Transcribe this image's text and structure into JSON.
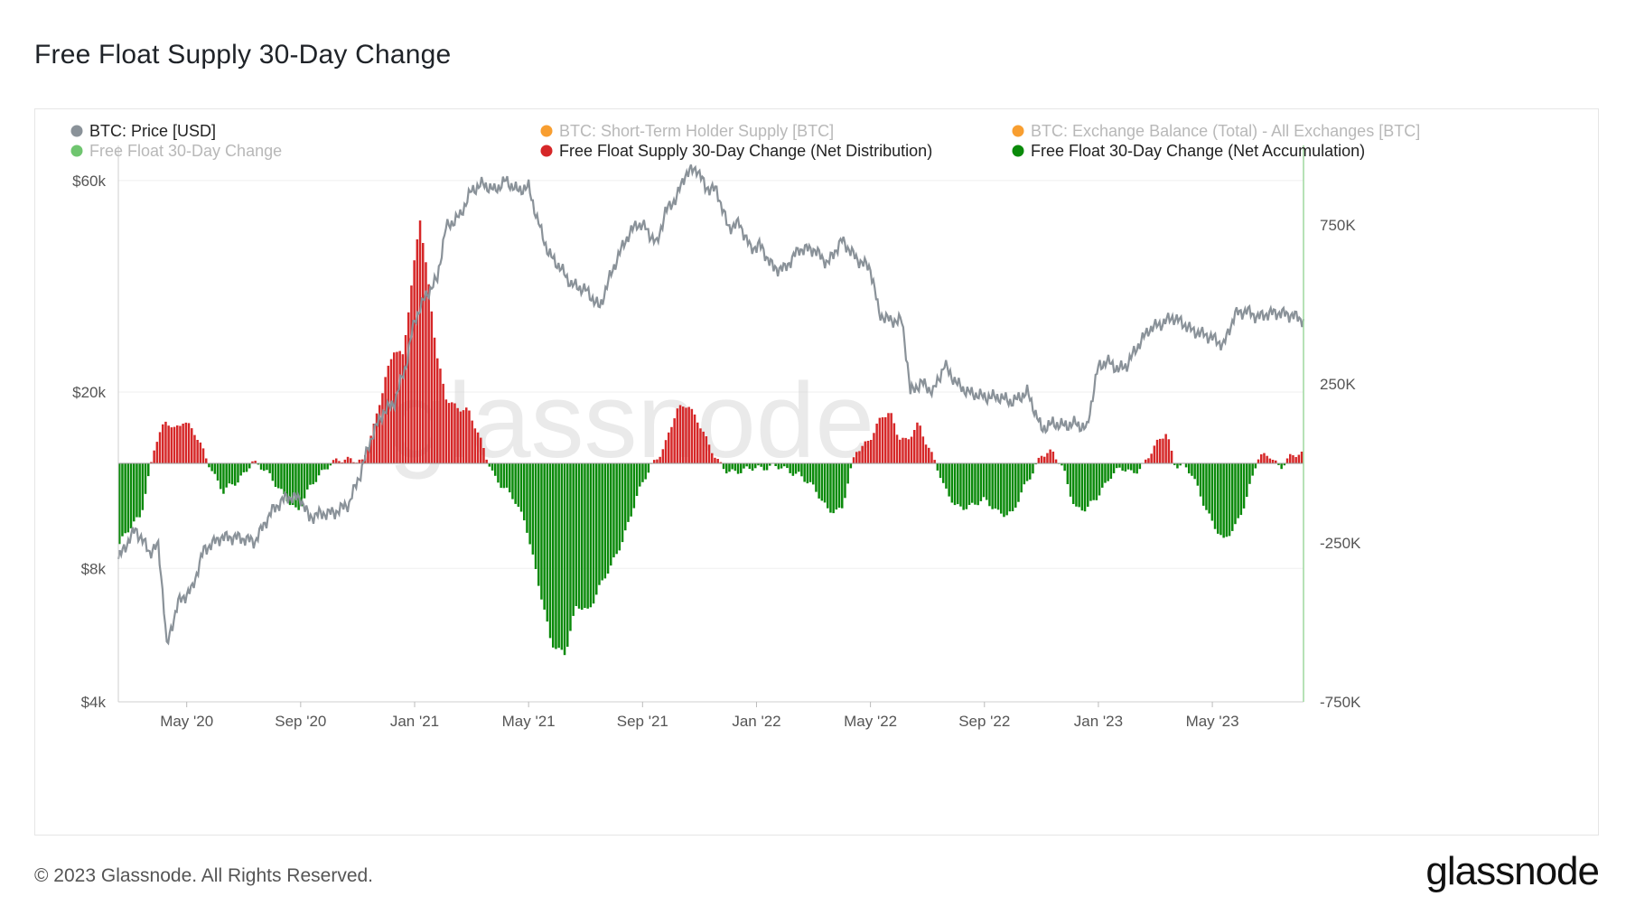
{
  "title": "Free Float Supply 30-Day Change",
  "footer": {
    "copyright": "© 2023 Glassnode. All Rights Reserved.",
    "logo": "glassnode"
  },
  "watermark": "glassnode",
  "chart_data": {
    "type": "bar",
    "title": "Free Float Supply 30-Day Change",
    "legend": [
      {
        "name": "BTC: Price [USD]",
        "color": "#8a9299",
        "active": true
      },
      {
        "name": "BTC: Short-Term Holder Supply [BTC]",
        "color": "#f7931a",
        "active": false
      },
      {
        "name": "BTC: Exchange Balance (Total) - All Exchanges [BTC]",
        "color": "#f7931a",
        "active": false
      },
      {
        "name": "Free Float 30-Day Change",
        "color": "#5fbf5f",
        "active": false
      },
      {
        "name": "Free Float Supply 30-Day Change (Net Distribution)",
        "color": "#d62728",
        "active": true
      },
      {
        "name": "Free Float 30-Day Change (Net Accumulation)",
        "color": "#0a8a0a",
        "active": true
      }
    ],
    "legend_position": "top",
    "x_ticks": [
      "May '20",
      "Sep '20",
      "Jan '21",
      "May '21",
      "Sep '21",
      "Jan '22",
      "May '22",
      "Sep '22",
      "Jan '23",
      "May '23"
    ],
    "x_tick_months": [
      4,
      8,
      12,
      16,
      20,
      24,
      28,
      32,
      36,
      40
    ],
    "x_range_months": [
      1.6,
      43.2
    ],
    "y_left": {
      "scale": "log",
      "ticks": [
        "$4k",
        "$8k",
        "$20k",
        "$60k"
      ],
      "tick_values": [
        4000,
        8000,
        20000,
        60000
      ],
      "range": [
        4000,
        72000
      ]
    },
    "y_right": {
      "scale": "linear",
      "ticks": [
        "750K",
        "250K",
        "-250K",
        "-750K"
      ],
      "tick_values": [
        750000,
        250000,
        -250000,
        -750000
      ],
      "range": [
        -750000,
        1000000
      ]
    },
    "price_series": {
      "name": "BTC: Price [USD]",
      "x_month": [
        1.6,
        2.2,
        2.7,
        3.0,
        3.3,
        3.7,
        4.2,
        4.6,
        5.2,
        5.8,
        6.4,
        7.0,
        7.5,
        8.0,
        8.3,
        8.6,
        9.2,
        9.7,
        10.1,
        10.5,
        10.9,
        11.3,
        11.7,
        12.0,
        12.4,
        12.8,
        13.1,
        13.6,
        14.0,
        14.4,
        14.8,
        15.2,
        15.6,
        16.0,
        16.3,
        16.7,
        17.0,
        17.5,
        18.0,
        18.5,
        18.9,
        19.4,
        19.8,
        20.1,
        20.5,
        20.8,
        21.2,
        21.5,
        21.9,
        22.2,
        22.6,
        23.0,
        23.4,
        23.8,
        24.1,
        24.6,
        25.0,
        25.5,
        26.0,
        26.5,
        27.0,
        27.5,
        28.0,
        28.3,
        28.7,
        29.1,
        29.4,
        29.8,
        30.2,
        30.6,
        31.0,
        31.4,
        32.0,
        32.5,
        33.0,
        33.5,
        34.0,
        34.4,
        34.8,
        35.2,
        35.6,
        36.0,
        36.3,
        36.7,
        37.0,
        37.4,
        37.8,
        38.2,
        38.6,
        39.0,
        39.3,
        39.7,
        40.0,
        40.4,
        40.8,
        41.2,
        41.6,
        41.9,
        42.2,
        42.6,
        43.0,
        43.2
      ],
      "y_usd": [
        8400,
        9800,
        8700,
        9000,
        5300,
        6700,
        7200,
        8800,
        9400,
        9400,
        9200,
        10800,
        11600,
        11500,
        10400,
        10600,
        10700,
        11200,
        13100,
        15900,
        18000,
        19000,
        23000,
        29000,
        33000,
        36000,
        47000,
        50000,
        57000,
        59000,
        57000,
        60000,
        57000,
        58000,
        49000,
        41000,
        39000,
        35000,
        34000,
        31000,
        37000,
        44000,
        48000,
        47000,
        43000,
        51000,
        55000,
        62000,
        64000,
        58000,
        57000,
        47000,
        48000,
        42000,
        43000,
        38000,
        38000,
        42000,
        42000,
        39000,
        44000,
        40000,
        38000,
        30000,
        29000,
        29000,
        20000,
        21000,
        20000,
        23000,
        21000,
        20000,
        19500,
        19500,
        19000,
        20000,
        16500,
        17000,
        16800,
        17000,
        16500,
        22800,
        23500,
        22500,
        23000,
        25500,
        27800,
        28500,
        29500,
        28500,
        27500,
        27000,
        26500,
        25500,
        30000,
        30500,
        29500,
        30000,
        30200,
        30000,
        29500,
        29000
      ]
    },
    "flow_series": {
      "x_month": [
        1.6,
        2.4,
        2.9,
        3.3,
        3.6,
        3.9,
        4.3,
        4.8,
        5.3,
        5.8,
        6.3,
        6.8,
        7.4,
        7.9,
        8.4,
        8.7,
        9.0,
        9.4,
        9.8,
        10.2,
        10.6,
        11.0,
        11.3,
        11.6,
        11.9,
        12.2,
        12.5,
        12.8,
        13.1,
        13.5,
        13.9,
        14.4,
        14.8,
        15.1,
        15.5,
        15.9,
        16.3,
        16.8,
        17.3,
        17.7,
        18.1,
        18.5,
        18.9,
        19.3,
        19.8,
        20.3,
        20.8,
        21.2,
        21.6,
        22.0,
        22.3,
        22.6,
        23.0,
        23.5,
        24.0,
        24.5,
        25.0,
        25.5,
        26.0,
        26.5,
        27.0,
        27.5,
        28.0,
        28.4,
        28.7,
        29.0,
        29.3,
        29.7,
        30.0,
        30.3,
        30.6,
        31.0,
        31.5,
        32.0,
        32.5,
        33.0,
        33.5,
        34.0,
        34.4,
        34.8,
        35.2,
        35.6,
        36.0,
        36.4,
        36.8,
        37.2,
        37.6,
        38.0,
        38.4,
        38.7,
        39.0,
        39.3,
        39.6,
        40.0,
        40.4,
        40.8,
        41.2,
        41.6,
        42.0,
        42.4,
        42.8,
        43.2
      ],
      "y_btc": [
        -260000,
        -160000,
        60000,
        130000,
        110000,
        140000,
        90000,
        0,
        -90000,
        -60000,
        10000,
        -30000,
        -90000,
        -160000,
        -60000,
        -30000,
        -10000,
        10000,
        20000,
        0,
        120000,
        280000,
        360000,
        330000,
        560000,
        780000,
        560000,
        330000,
        210000,
        180000,
        160000,
        60000,
        -40000,
        -80000,
        -110000,
        -180000,
        -360000,
        -560000,
        -600000,
        -450000,
        -460000,
        -390000,
        -330000,
        -240000,
        -110000,
        -10000,
        60000,
        160000,
        190000,
        130000,
        60000,
        10000,
        -20000,
        -30000,
        -10000,
        -10000,
        -20000,
        -30000,
        -80000,
        -140000,
        -150000,
        40000,
        80000,
        140000,
        160000,
        90000,
        70000,
        120000,
        60000,
        10000,
        -80000,
        -140000,
        -130000,
        -120000,
        -150000,
        -160000,
        -60000,
        30000,
        30000,
        -20000,
        -140000,
        -150000,
        -100000,
        -40000,
        -20000,
        -30000,
        0,
        50000,
        100000,
        0,
        -10000,
        -40000,
        -100000,
        -180000,
        -250000,
        -200000,
        -110000,
        10000,
        30000,
        -10000,
        20000,
        30000
      ]
    }
  }
}
